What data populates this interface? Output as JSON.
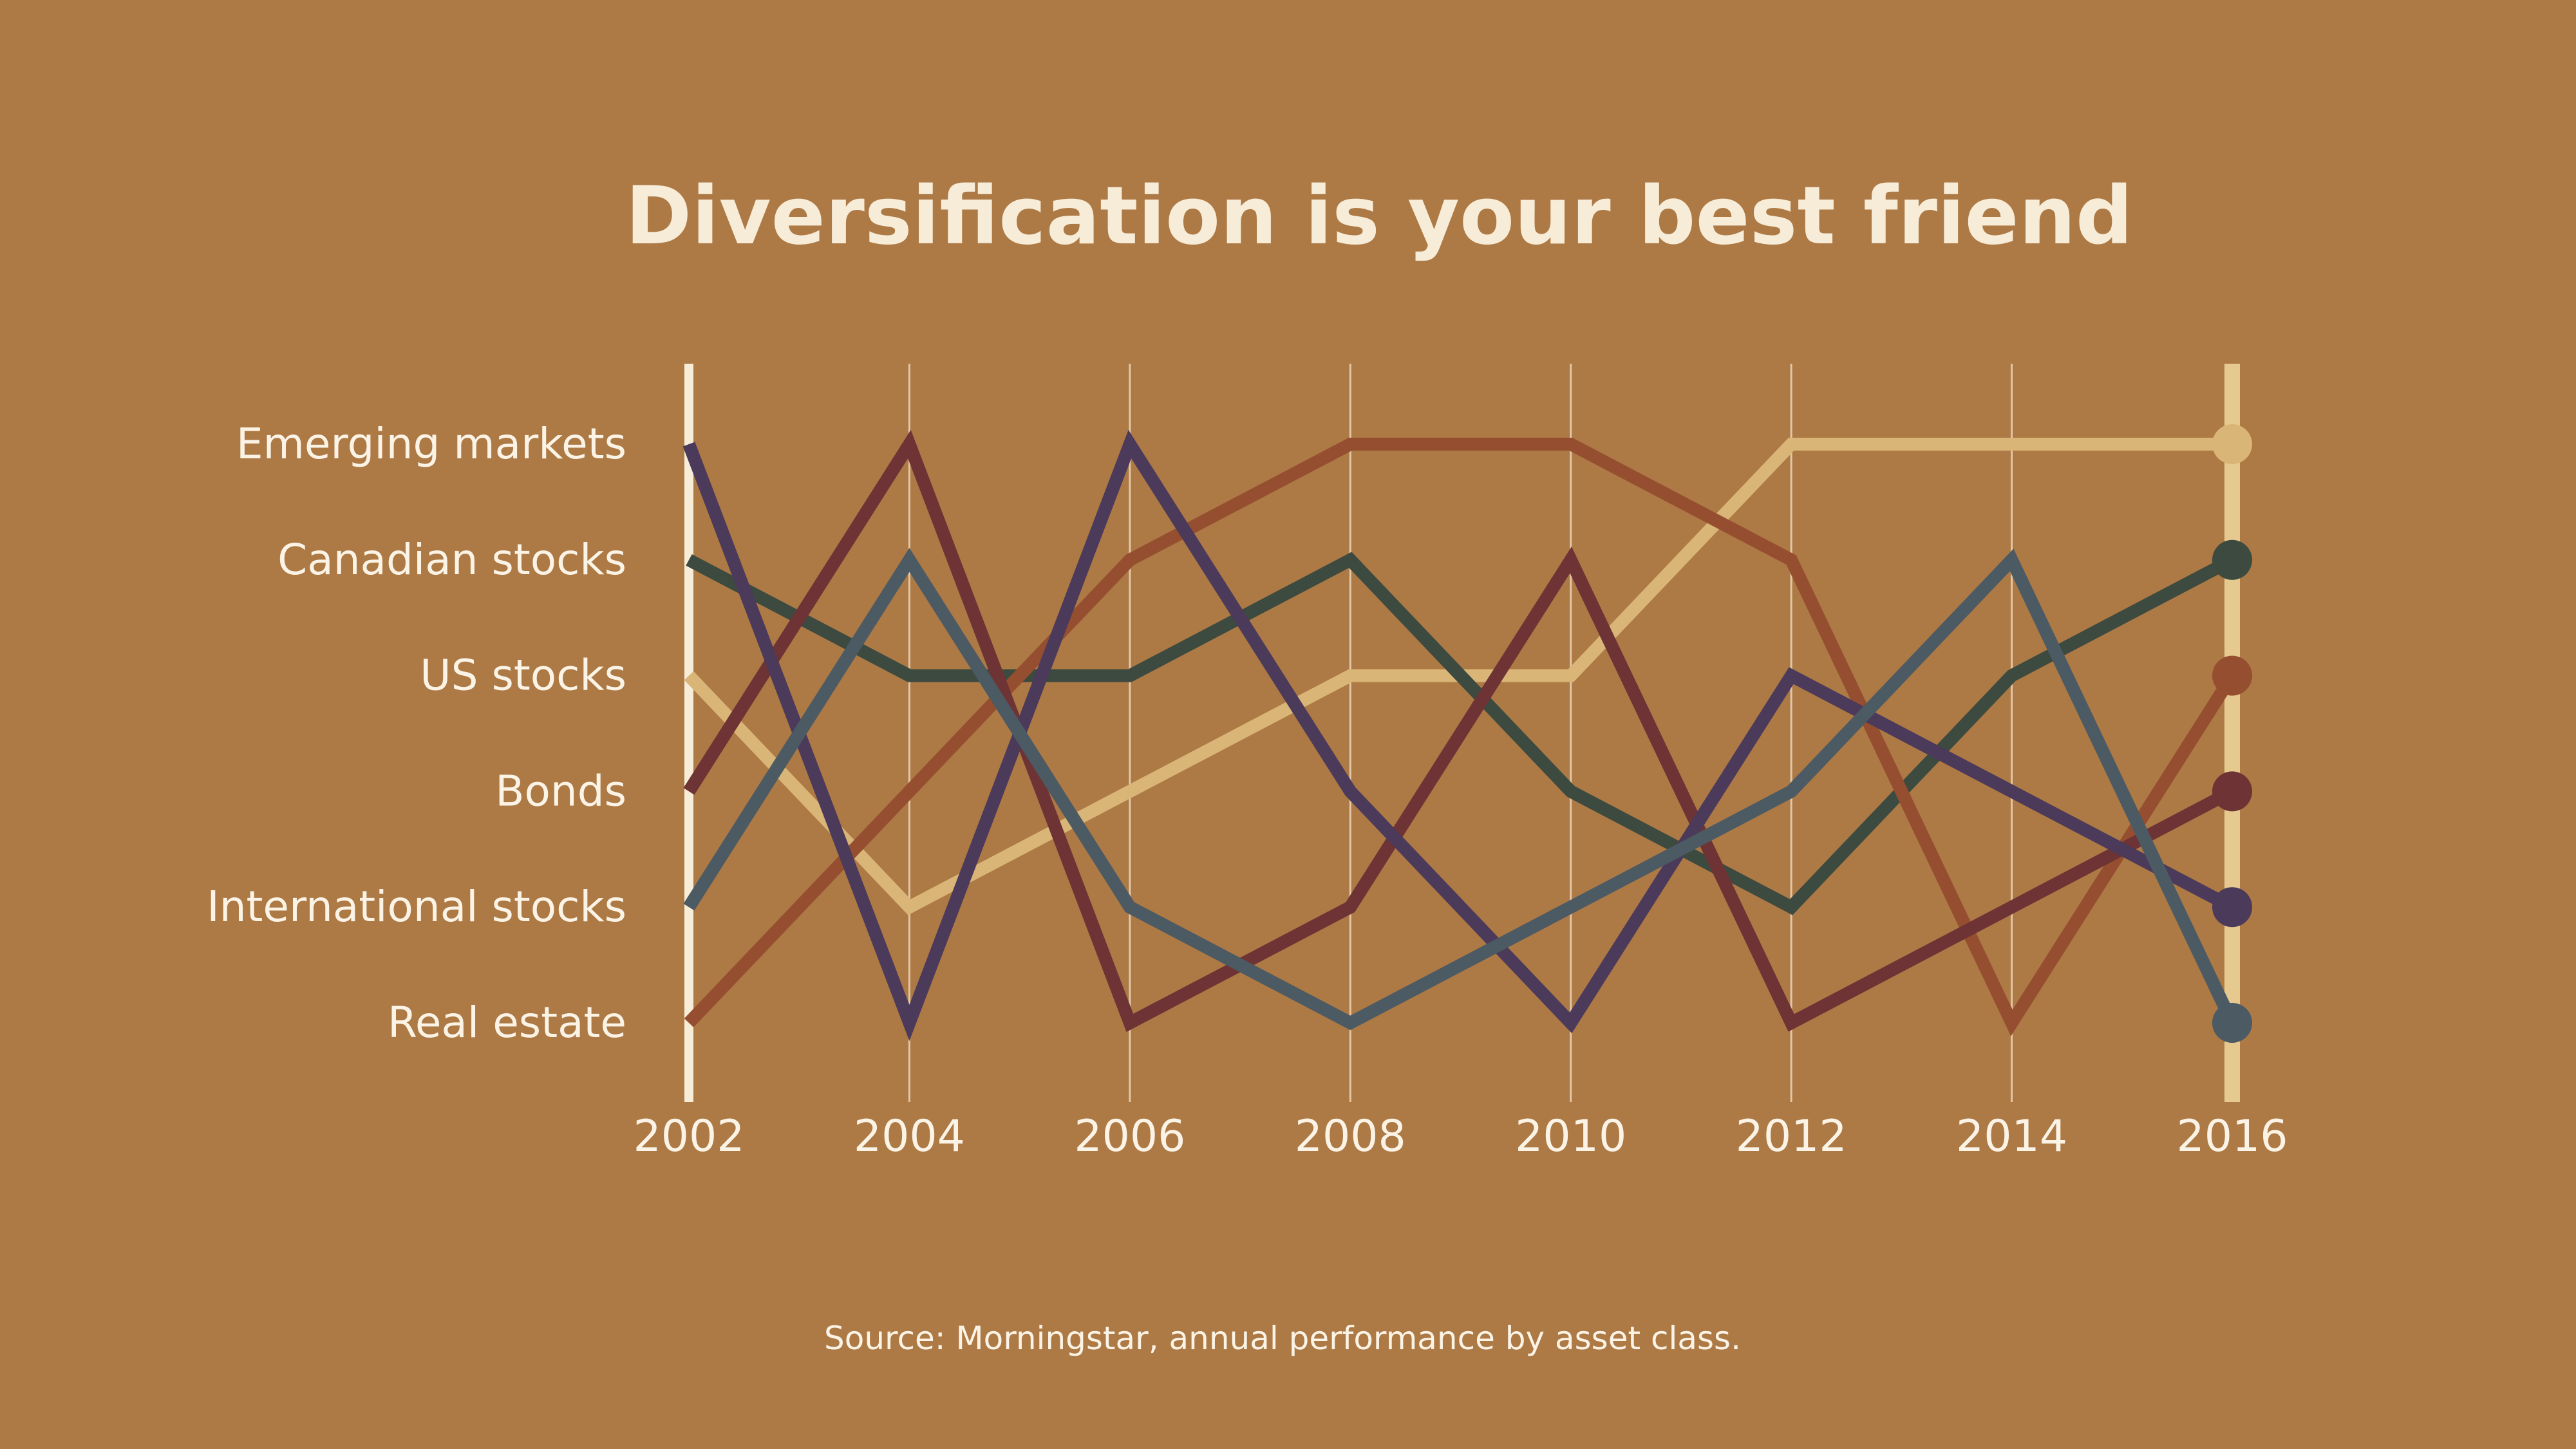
{
  "chart_data": {
    "type": "line",
    "title": "Diversification is your best friend",
    "source": "Source: Morningstar, annual performance by asset class.",
    "xlabel": "",
    "ylabel": "",
    "x": [
      "2002",
      "2004",
      "2006",
      "2008",
      "2010",
      "2012",
      "2014",
      "2016"
    ],
    "rank_labels": [
      "Emerging markets",
      "Canadian stocks",
      "US stocks",
      "Bonds",
      "International stocks",
      "Real estate"
    ],
    "ylim": [
      1,
      6
    ],
    "grid": true,
    "background_color": "#ad7945",
    "text_color": "#fbf4e6",
    "axis_color": "#f7ecd7",
    "highlight_column_color": "#e6c98e",
    "series": [
      {
        "name": "Emerging markets",
        "color": "#d9b577",
        "values": [
          3,
          5,
          4,
          3,
          3,
          1,
          1,
          1
        ]
      },
      {
        "name": "Canadian stocks",
        "color": "#3c4a40",
        "values": [
          2,
          3,
          3,
          2,
          4,
          5,
          3,
          2
        ]
      },
      {
        "name": "US stocks",
        "color": "#954f30",
        "values": [
          6,
          4,
          2,
          1,
          1,
          2,
          6,
          3
        ]
      },
      {
        "name": "Bonds",
        "color": "#6e3334",
        "values": [
          4,
          1,
          6,
          5,
          2,
          6,
          5,
          4
        ]
      },
      {
        "name": "International stocks",
        "color": "#4b3a5a",
        "values": [
          1,
          6,
          1,
          4,
          6,
          3,
          4,
          5
        ]
      },
      {
        "name": "Real estate",
        "color": "#4b5a63",
        "values": [
          5,
          2,
          5,
          6,
          5,
          4,
          2,
          6
        ]
      }
    ]
  }
}
